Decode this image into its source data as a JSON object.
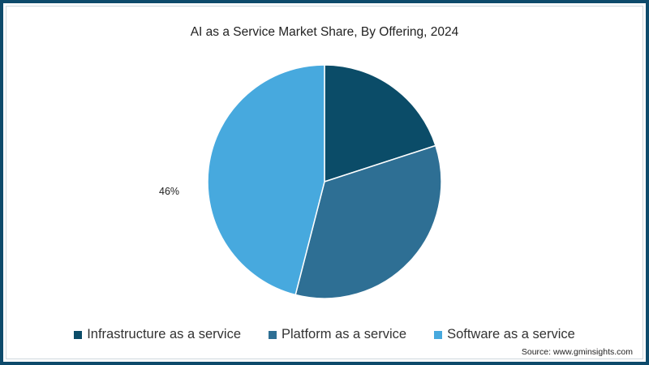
{
  "chart_data": {
    "type": "pie",
    "title": "AI as a Service Market Share, By Offering, 2024",
    "categories": [
      "Infrastructure as a service",
      "Platform as a service",
      "Software as a service"
    ],
    "values": [
      20,
      34,
      46
    ],
    "unit": "%",
    "colors": [
      "#0b4c68",
      "#2e6f94",
      "#47a9de"
    ],
    "data_labels": [
      {
        "category": "Software as a service",
        "text": "46%"
      }
    ],
    "legend_position": "bottom",
    "start_angle_deg": 0,
    "direction": "clockwise"
  },
  "title": "AI as a Service Market Share, By Offering, 2024",
  "label_software": "46%",
  "legend": [
    {
      "label": "Infrastructure as a service",
      "color": "#0b4c68"
    },
    {
      "label": "Platform as a service",
      "color": "#2e6f94"
    },
    {
      "label": "Software as a service",
      "color": "#47a9de"
    }
  ],
  "source": "Source: www.gminsights.com"
}
